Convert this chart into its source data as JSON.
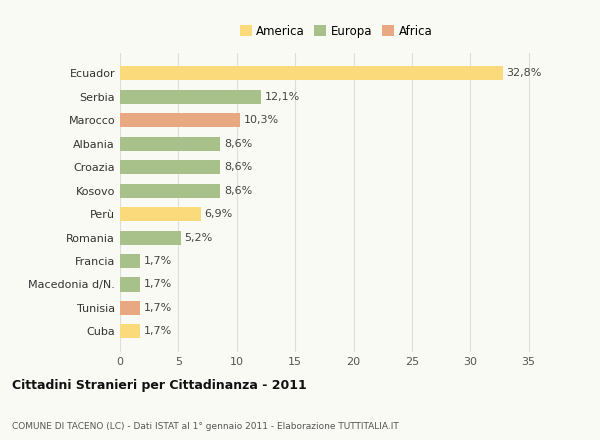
{
  "categories": [
    "Ecuador",
    "Serbia",
    "Marocco",
    "Albania",
    "Croazia",
    "Kosovo",
    "Perù",
    "Romania",
    "Francia",
    "Macedonia d/N.",
    "Tunisia",
    "Cuba"
  ],
  "values": [
    32.8,
    12.1,
    10.3,
    8.6,
    8.6,
    8.6,
    6.9,
    5.2,
    1.7,
    1.7,
    1.7,
    1.7
  ],
  "labels": [
    "32,8%",
    "12,1%",
    "10,3%",
    "8,6%",
    "8,6%",
    "8,6%",
    "6,9%",
    "5,2%",
    "1,7%",
    "1,7%",
    "1,7%",
    "1,7%"
  ],
  "colors": [
    "#FADA7A",
    "#A8C08A",
    "#E8A882",
    "#A8C08A",
    "#A8C08A",
    "#A8C08A",
    "#FADA7A",
    "#A8C08A",
    "#A8C08A",
    "#A8C08A",
    "#E8A882",
    "#FADA7A"
  ],
  "legend": [
    {
      "label": "America",
      "color": "#FADA7A"
    },
    {
      "label": "Europa",
      "color": "#A8C08A"
    },
    {
      "label": "Africa",
      "color": "#E8A882"
    }
  ],
  "title1": "Cittadini Stranieri per Cittadinanza - 2011",
  "title2": "COMUNE DI TACENO (LC) - Dati ISTAT al 1° gennaio 2011 - Elaborazione TUTTITALIA.IT",
  "xlim": [
    0,
    37
  ],
  "xticks": [
    0,
    5,
    10,
    15,
    20,
    25,
    30,
    35
  ],
  "background_color": "#FAFAF5",
  "bar_height": 0.6,
  "grid_color": "#DDDDDD",
  "label_fontsize": 8,
  "tick_fontsize": 8,
  "legend_fontsize": 8.5
}
